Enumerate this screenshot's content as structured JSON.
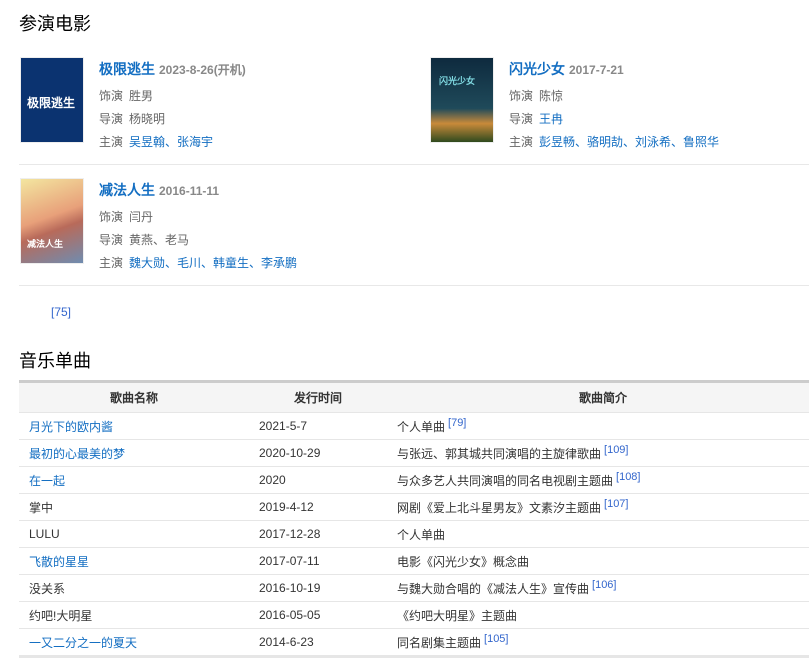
{
  "films_heading": "参演电影",
  "films": [
    {
      "title": "极限逃生",
      "date": "2023-8-26(开机)",
      "role_label": "饰演",
      "role": "胜男",
      "director_label": "导演",
      "directors": "杨晓明",
      "director_link": false,
      "cast_label": "主演",
      "cast": "吴昱翰、张海宇",
      "poster_text": "极限逃生",
      "poster_color": "#0b3370"
    },
    {
      "title": "闪光少女",
      "date": "2017-7-21",
      "role_label": "饰演",
      "role": "陈惊",
      "director_label": "导演",
      "directors": "王冉",
      "director_link": true,
      "cast_label": "主演",
      "cast": "彭昱畅、骆明劼、刘泳希、鲁照华",
      "poster_text": "闪光少女",
      "poster_color": "#0e2a3e"
    },
    {
      "title": "减法人生",
      "date": "2016-11-11",
      "role_label": "饰演",
      "role": "闫丹",
      "director_label": "导演",
      "directors": "黄燕、老马",
      "director_link": false,
      "cast_label": "主演",
      "cast": "魏大勋、毛川、韩童生、李承鹏",
      "poster_text": "减法人生",
      "poster_color": "#e8c87a"
    }
  ],
  "films_ref": "[75]",
  "music_heading": "音乐单曲",
  "music_table": {
    "headers": [
      "歌曲名称",
      "发行时间",
      "歌曲简介"
    ],
    "rows": [
      {
        "name": "月光下的欧内酱",
        "link": true,
        "date": "2021-5-7",
        "desc": "个人单曲",
        "ref": "[79]"
      },
      {
        "name": "最初的心最美的梦",
        "link": true,
        "date": "2020-10-29",
        "desc": "与张远、郭其城共同演唱的主旋律歌曲",
        "ref": "[109]"
      },
      {
        "name": "在一起",
        "link": true,
        "date": "2020",
        "desc": "与众多艺人共同演唱的同名电视剧主题曲",
        "ref": "[108]"
      },
      {
        "name": "掌中",
        "link": false,
        "date": "2019-4-12",
        "desc": "网剧《爱上北斗星男友》文素汐主题曲",
        "ref": "[107]"
      },
      {
        "name": "LULU",
        "link": false,
        "date": "2017-12-28",
        "desc": "个人单曲",
        "ref": ""
      },
      {
        "name": "飞散的星星",
        "link": true,
        "date": "2017-07-11",
        "desc": "电影《闪光少女》概念曲",
        "ref": ""
      },
      {
        "name": "没关系",
        "link": false,
        "date": "2016-10-19",
        "desc": "与魏大勋合唱的《减法人生》宣传曲",
        "ref": "[106]"
      },
      {
        "name": "约吧!大明星",
        "link": false,
        "date": "2016-05-05",
        "desc": "《约吧大明星》主题曲",
        "ref": ""
      },
      {
        "name": "一又二分之一的夏天",
        "link": true,
        "date": "2014-6-23",
        "desc": "同名剧集主题曲",
        "ref": "[105]"
      }
    ]
  },
  "colors": {
    "link": "#136ec2",
    "ref": "#3366cc",
    "muted": "#666666"
  }
}
